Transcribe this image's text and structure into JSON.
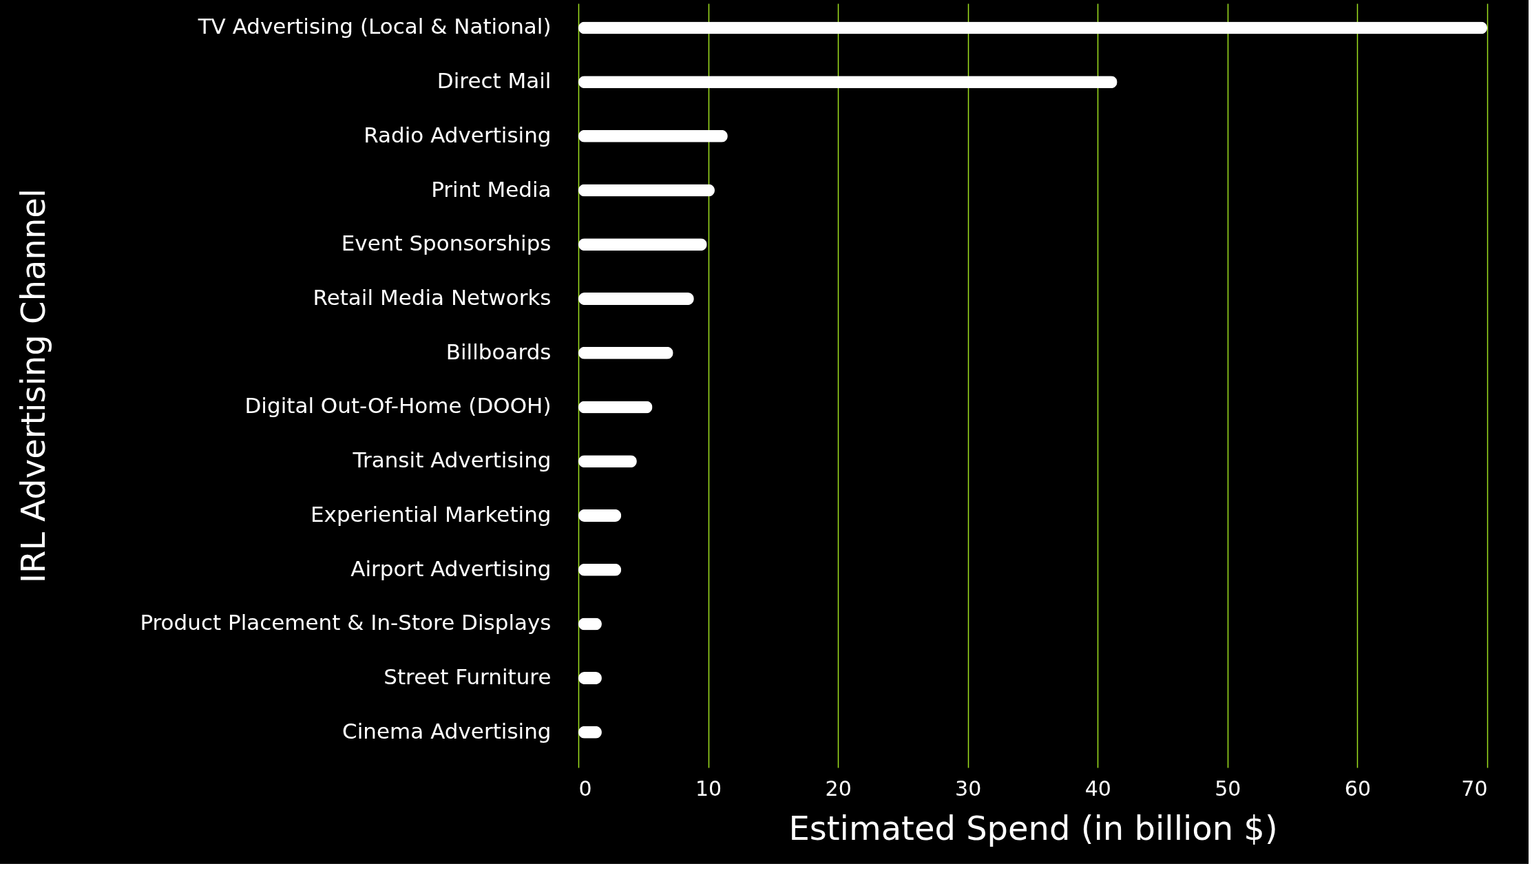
{
  "chart_data": {
    "type": "bar",
    "orientation": "horizontal",
    "xlabel": "Estimated Spend (in billion $)",
    "ylabel": "IRL Advertising Channel",
    "categories": [
      "TV Advertising (Local & National)",
      "Direct Mail",
      "Radio Advertising",
      "Print Media",
      "Event Sponsorships",
      "Retail Media Networks",
      "Billboards",
      "Digital Out-Of-Home (DOOH)",
      "Transit Advertising",
      "Experiential Marketing",
      "Airport Advertising",
      "Product Placement & In-Store Displays",
      "Street Furniture",
      "Cinema Advertising"
    ],
    "values": [
      70,
      41.5,
      11.5,
      10.5,
      9.9,
      8.9,
      7.3,
      5.7,
      4.5,
      3.3,
      3.3,
      1.8,
      1.8,
      1.8
    ],
    "color": "#ffffff",
    "xlim": [
      0,
      70
    ],
    "xticks": [
      0,
      10,
      20,
      30,
      40,
      50,
      60,
      70
    ],
    "grid": "x"
  }
}
